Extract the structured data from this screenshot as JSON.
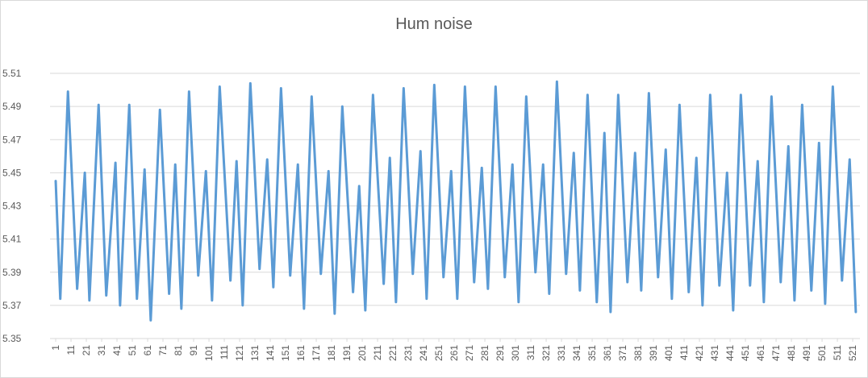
{
  "chart_data": {
    "type": "line",
    "title": "Hum noise",
    "color": "#5b9bd5",
    "x": [
      1,
      4,
      9,
      15,
      20,
      23,
      29,
      34,
      40,
      43,
      49,
      54,
      59,
      63,
      69,
      75,
      79,
      83,
      88,
      94,
      99,
      103,
      108,
      115,
      119,
      123,
      128,
      134,
      139,
      143,
      148,
      154,
      159,
      163,
      168,
      174,
      179,
      183,
      188,
      195,
      199,
      203,
      208,
      215,
      219,
      223,
      228,
      234,
      239,
      243,
      248,
      254,
      259,
      263,
      268,
      274,
      279,
      283,
      288,
      294,
      299,
      303,
      308,
      314,
      319,
      323,
      328,
      334,
      339,
      343,
      348,
      354,
      359,
      363,
      368,
      374,
      379,
      383,
      388,
      394,
      399,
      403,
      408,
      414,
      419,
      423,
      428,
      434,
      439,
      443,
      448,
      454,
      459,
      463,
      468,
      474,
      479,
      483,
      488,
      494,
      499,
      503,
      508,
      514,
      519,
      523
    ],
    "values": [
      5.445,
      5.374,
      5.499,
      5.38,
      5.45,
      5.373,
      5.491,
      5.376,
      5.456,
      5.37,
      5.491,
      5.374,
      5.452,
      5.361,
      5.488,
      5.377,
      5.455,
      5.368,
      5.499,
      5.388,
      5.451,
      5.373,
      5.502,
      5.385,
      5.457,
      5.37,
      5.504,
      5.392,
      5.458,
      5.381,
      5.501,
      5.388,
      5.455,
      5.368,
      5.496,
      5.389,
      5.451,
      5.365,
      5.49,
      5.378,
      5.442,
      5.367,
      5.497,
      5.383,
      5.459,
      5.372,
      5.501,
      5.389,
      5.463,
      5.374,
      5.503,
      5.387,
      5.451,
      5.374,
      5.502,
      5.384,
      5.453,
      5.38,
      5.502,
      5.387,
      5.455,
      5.372,
      5.496,
      5.39,
      5.455,
      5.377,
      5.505,
      5.389,
      5.462,
      5.379,
      5.497,
      5.372,
      5.474,
      5.366,
      5.497,
      5.384,
      5.462,
      5.379,
      5.498,
      5.387,
      5.464,
      5.374,
      5.491,
      5.378,
      5.459,
      5.37,
      5.497,
      5.382,
      5.45,
      5.367,
      5.497,
      5.382,
      5.457,
      5.372,
      5.496,
      5.384,
      5.466,
      5.373,
      5.491,
      5.379,
      5.468,
      5.371,
      5.502,
      5.385,
      5.458,
      5.366
    ],
    "xlim": [
      -2.7,
      525.7
    ],
    "xticks": [
      1,
      11,
      21,
      31,
      41,
      51,
      61,
      71,
      81,
      91,
      101,
      111,
      121,
      131,
      141,
      151,
      161,
      171,
      181,
      191,
      201,
      211,
      221,
      231,
      241,
      251,
      261,
      271,
      281,
      291,
      301,
      311,
      321,
      331,
      341,
      351,
      361,
      371,
      381,
      391,
      401,
      411,
      421,
      431,
      441,
      451,
      461,
      471,
      481,
      491,
      501,
      511,
      521
    ],
    "ylim": [
      5.35,
      5.51
    ],
    "yticks": [
      5.35,
      5.37,
      5.39,
      5.41,
      5.43,
      5.45,
      5.47,
      5.49,
      5.51
    ],
    "grid": true
  }
}
